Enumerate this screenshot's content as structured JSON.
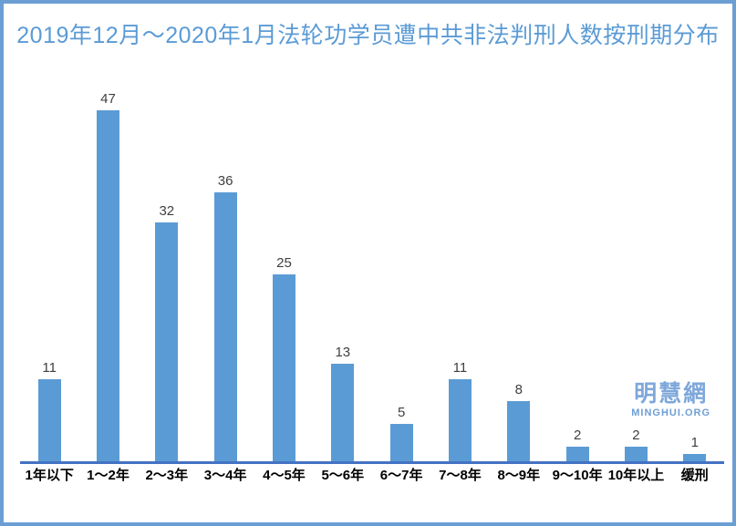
{
  "chart_data": {
    "type": "bar",
    "title": "2019年12月～2020年1月法轮功学员遭中共非法判刑人数按刑期分布",
    "categories": [
      "1年以下",
      "1～2年",
      "2～3年",
      "3～4年",
      "4～5年",
      "5～6年",
      "6～7年",
      "7～8年",
      "8～9年",
      "9～10年",
      "10年以上",
      "缓刑"
    ],
    "values": [
      11,
      47,
      32,
      36,
      25,
      13,
      5,
      11,
      8,
      2,
      2,
      1
    ],
    "xlabel": "",
    "ylabel": "",
    "ylim": [
      0,
      50
    ],
    "grid": false,
    "legend_position": "none",
    "data_labels": true,
    "bar_color": "#5b9bd5",
    "axis_line_color": "#4472c4",
    "value_label_color": "#3f3f3f",
    "title_color": "#5b9bd5"
  },
  "watermark": {
    "cjk": "明慧網",
    "latin": "MINGHUI.ORG",
    "color": "#7ea7da"
  },
  "frame": {
    "border_color": "#6b9fd4",
    "background": "#ffffff"
  }
}
